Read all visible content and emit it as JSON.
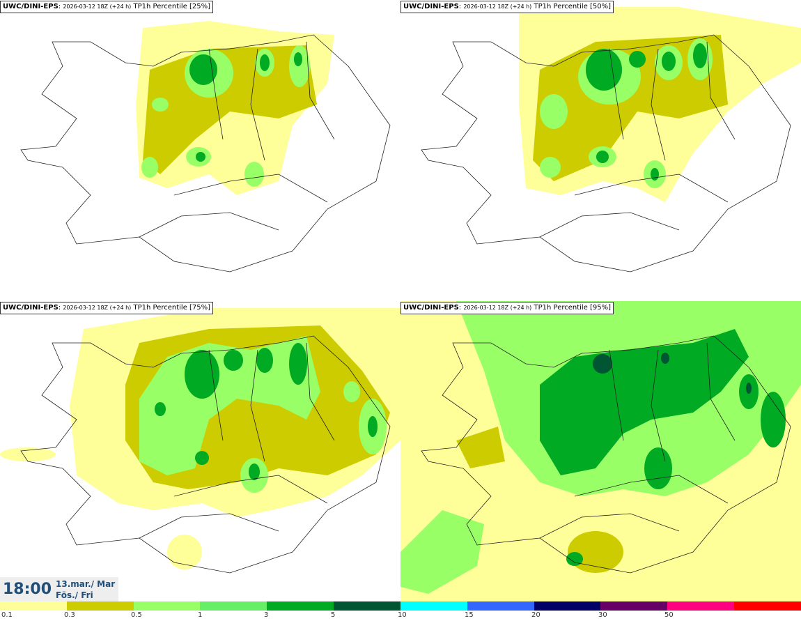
{
  "panels": [
    {
      "model": "UWC/DINI-EPS",
      "run": "2026-03-12 18Z (+24 h)",
      "field": "TP1h Percentile [25%]"
    },
    {
      "model": "UWC/DINI-EPS",
      "run": "2026-03-12 18Z (+24 h)",
      "field": "TP1h Percentile [50%]"
    },
    {
      "model": "UWC/DINI-EPS",
      "run": "2026-03-12 18Z (+24 h)",
      "field": "TP1h Percentile [75%]"
    },
    {
      "model": "UWC/DINI-EPS",
      "run": "2026-03-12 18Z (+24 h)",
      "field": "TP1h Percentile [95%]"
    }
  ],
  "valid_time": {
    "clock": "18:00",
    "date_line": "13.mar./ Mar",
    "day_line": "Fös./ Fri"
  },
  "legend": {
    "levels": [
      "0.1",
      "0.3",
      "0.5",
      "1",
      "3",
      "5",
      "10",
      "15",
      "20",
      "30",
      "50"
    ],
    "colors": [
      "#ffff99",
      "#cccc00",
      "#99ff66",
      "#66ee66",
      "#00aa22",
      "#005533",
      "#00ffff",
      "#3366ff",
      "#000066",
      "#660066",
      "#ff0080",
      "#ff0000"
    ]
  },
  "colors": {
    "outline": "#222222",
    "yellow": "#ffff99",
    "olive": "#cccc00",
    "lightgreen": "#99ff66",
    "green": "#00aa22",
    "darkgreen": "#005533"
  }
}
